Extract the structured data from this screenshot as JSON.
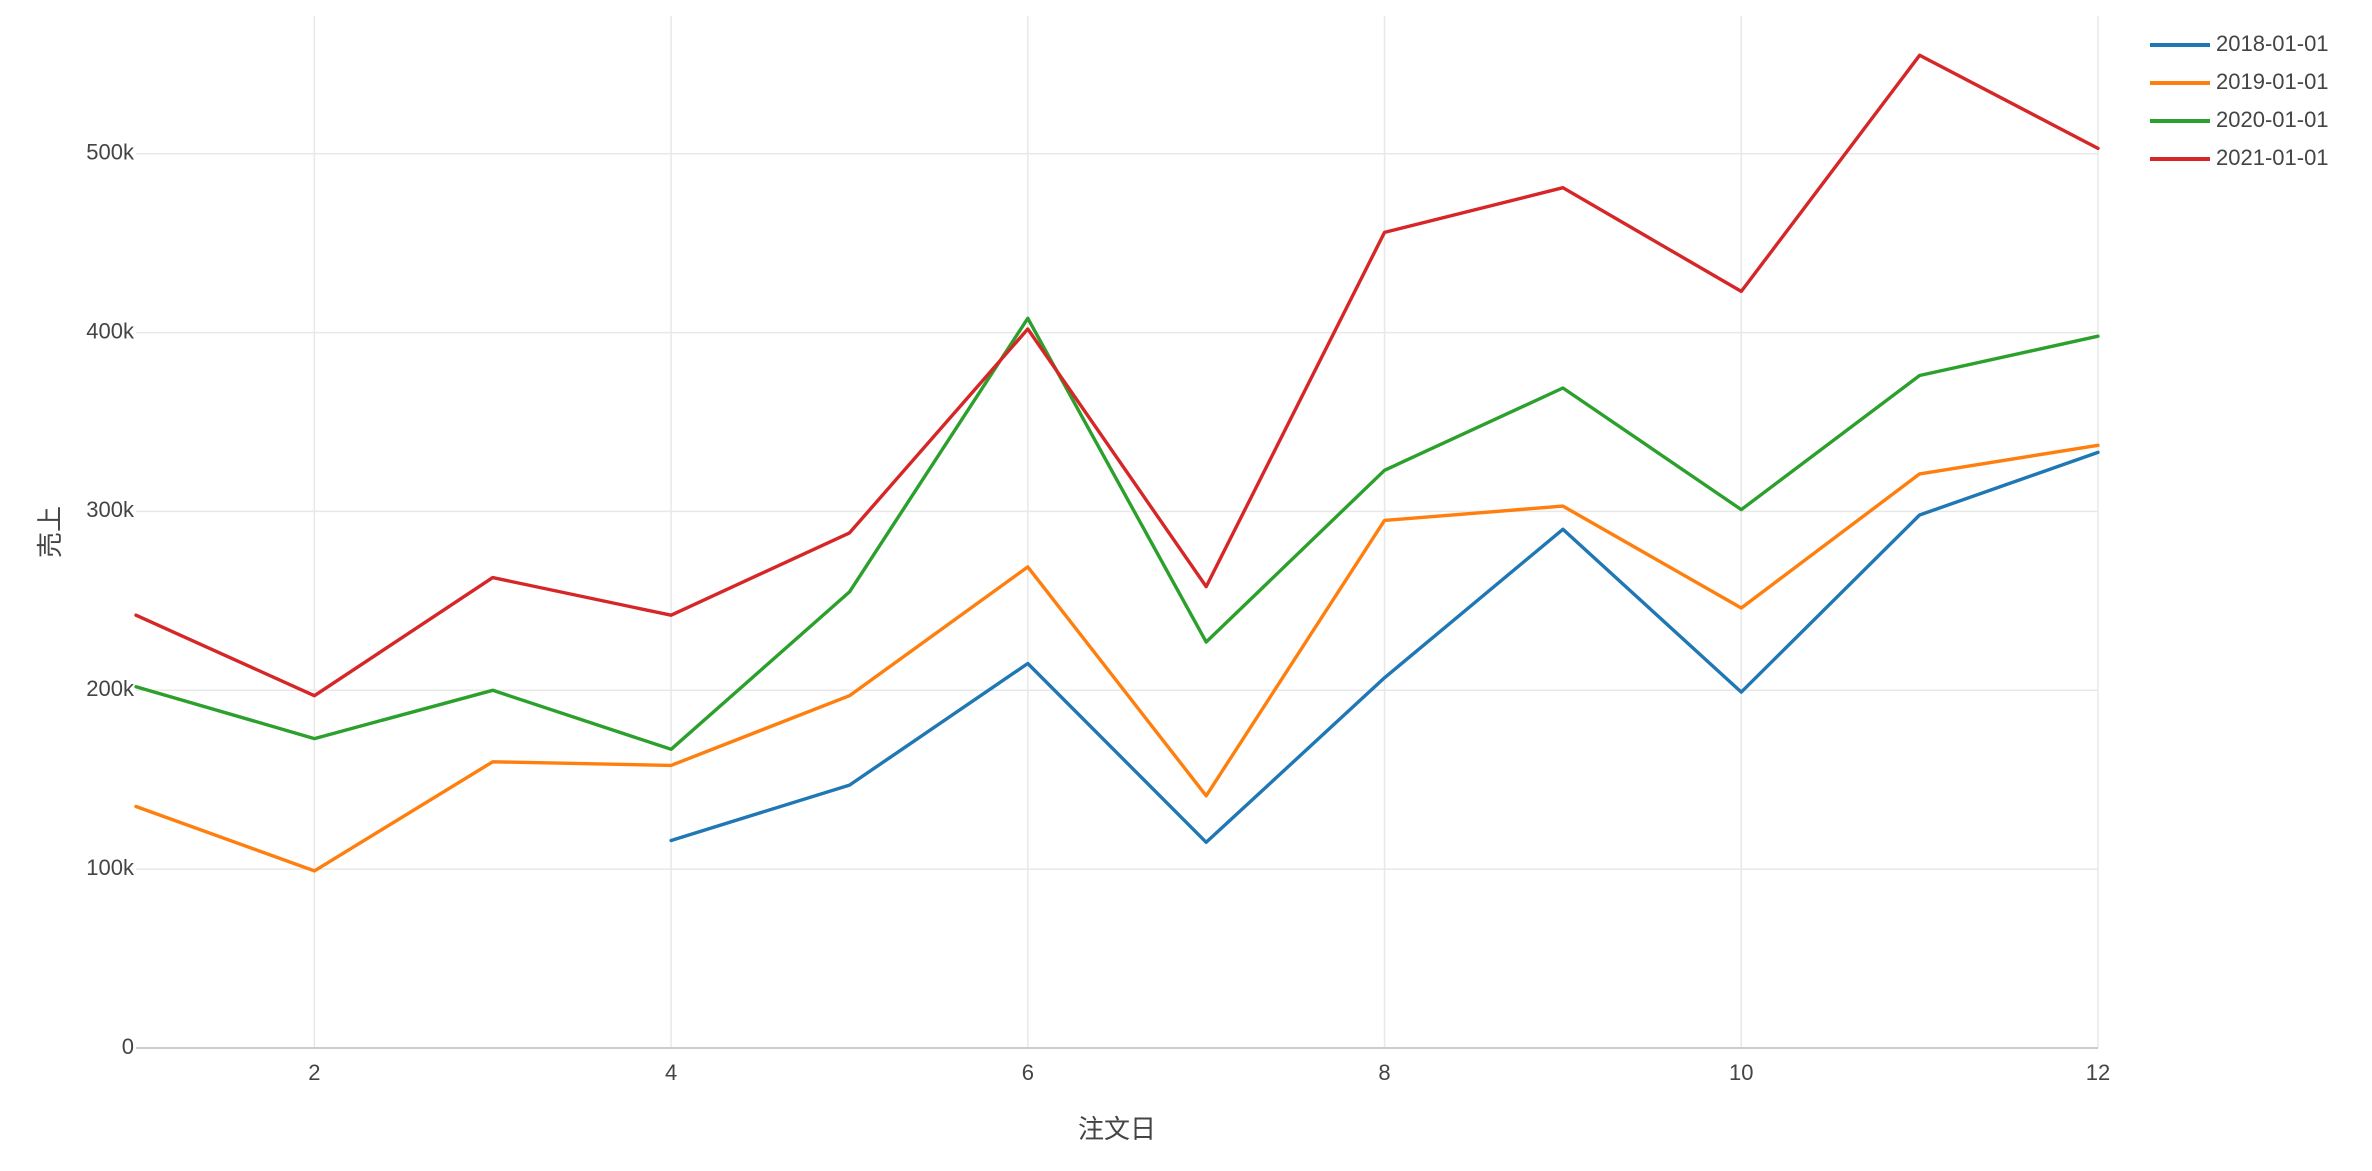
{
  "chart_data": {
    "type": "line",
    "title": "",
    "xlabel": "注文日",
    "ylabel": "売上",
    "x": [
      1,
      2,
      3,
      4,
      5,
      6,
      7,
      8,
      9,
      10,
      11,
      12
    ],
    "xlim": [
      1,
      12
    ],
    "ylim": [
      0,
      577000
    ],
    "x_ticks": [
      2,
      4,
      6,
      8,
      10,
      12
    ],
    "x_tick_labels": [
      "2",
      "4",
      "6",
      "8",
      "10",
      "12"
    ],
    "y_ticks": [
      0,
      100000,
      200000,
      300000,
      400000,
      500000
    ],
    "y_tick_labels": [
      "0",
      "100k",
      "200k",
      "300k",
      "400k",
      "500k"
    ],
    "grid": true,
    "legend_position": "top-right",
    "series": [
      {
        "name": "2018-01-01",
        "color": "#1f77b4",
        "values": [
          null,
          null,
          null,
          116000,
          147000,
          215000,
          115000,
          207000,
          290000,
          199000,
          298000,
          333000
        ]
      },
      {
        "name": "2019-01-01",
        "color": "#ff7f0e",
        "values": [
          135000,
          99000,
          160000,
          158000,
          197000,
          269000,
          141000,
          295000,
          303000,
          246000,
          321000,
          337000
        ]
      },
      {
        "name": "2020-01-01",
        "color": "#2ca02c",
        "values": [
          202000,
          173000,
          200000,
          167000,
          255000,
          408000,
          227000,
          323000,
          369000,
          301000,
          376000,
          398000
        ]
      },
      {
        "name": "2021-01-01",
        "color": "#d62728",
        "values": [
          242000,
          197000,
          263000,
          242000,
          288000,
          402000,
          258000,
          456000,
          481000,
          423000,
          555000,
          503000
        ]
      }
    ]
  }
}
